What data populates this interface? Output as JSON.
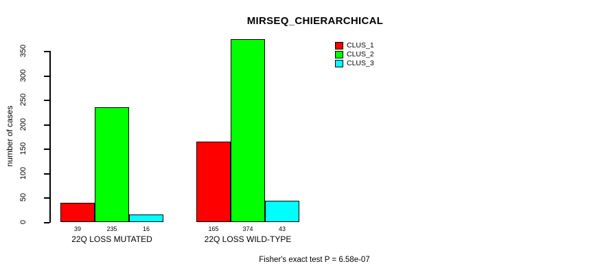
{
  "title": "MIRSEQ_CHIERARCHICAL",
  "caption": "Fisher's exact test P = 6.58e-07",
  "chart_data": {
    "type": "bar",
    "title": "MIRSEQ_CHIERARCHICAL",
    "ylabel": "number of cases",
    "xlabel": "",
    "yticks": [
      0,
      50,
      100,
      150,
      200,
      250,
      300,
      350
    ],
    "ylim": [
      0,
      375
    ],
    "grid": false,
    "legend_position": "top-right",
    "bar_value_labels_shown": true,
    "categories": [
      "22Q LOSS MUTATED",
      "22Q LOSS WILD-TYPE"
    ],
    "series": [
      {
        "name": "CLUS_1",
        "color": "#ff0000",
        "values": [
          39,
          165
        ]
      },
      {
        "name": "CLUS_2",
        "color": "#00ff00",
        "values": [
          235,
          374
        ]
      },
      {
        "name": "CLUS_3",
        "color": "#00ffff",
        "values": [
          16,
          43
        ]
      }
    ],
    "groups": [
      {
        "label": "22Q LOSS MUTATED",
        "values": [
          39,
          235,
          16
        ]
      },
      {
        "label": "22Q LOSS WILD-TYPE",
        "values": [
          165,
          374,
          43
        ]
      }
    ],
    "annotation": "Fisher's exact test P = 6.58e-07"
  }
}
